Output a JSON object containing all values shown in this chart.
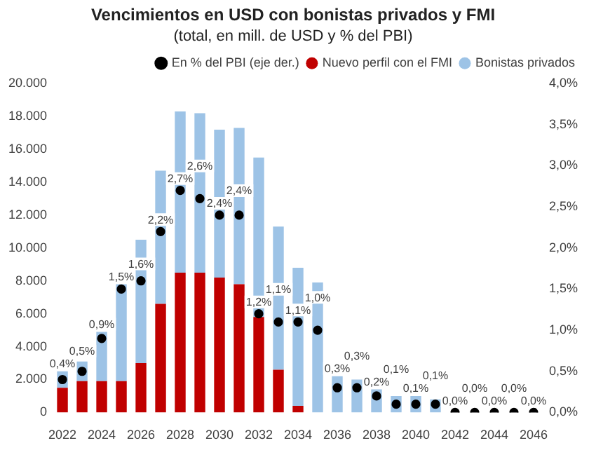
{
  "chart_data": {
    "type": "bar",
    "title": "Vencimientos en USD con bonistas privados y FMI",
    "subtitle": "(total, en mill. de USD y % del PBI)",
    "categories": [
      "2022",
      null,
      "2024",
      null,
      "2026",
      null,
      "2028",
      null,
      "2030",
      null,
      "2032",
      null,
      "2034",
      null,
      "2036",
      null,
      "2038",
      null,
      "2040",
      null,
      "2042",
      null,
      "2044",
      null,
      "2046"
    ],
    "stacked": true,
    "series": [
      {
        "name": "Nuevo perfil con el FMI",
        "color": "#c00000",
        "values": [
          1500,
          1900,
          1900,
          1900,
          3000,
          6600,
          8500,
          8500,
          8200,
          7800,
          5800,
          2600,
          400,
          0,
          0,
          0,
          0,
          0,
          0,
          0,
          0,
          0,
          0,
          0,
          0
        ]
      },
      {
        "name": "Bonistas privados",
        "color": "#9dc3e6",
        "values": [
          1000,
          1200,
          3000,
          5900,
          7500,
          8100,
          9800,
          9700,
          9000,
          9500,
          9700,
          8700,
          8400,
          7900,
          2200,
          2000,
          1400,
          1000,
          1000,
          800,
          0,
          0,
          0,
          0,
          0
        ]
      },
      {
        "name": "En % del PBI (eje der.)",
        "type": "scatter",
        "axis": "y2",
        "color": "#000000",
        "marker": "circle",
        "values": [
          0.4,
          0.5,
          0.9,
          1.5,
          1.6,
          2.2,
          2.7,
          2.6,
          2.4,
          2.4,
          1.2,
          1.1,
          1.1,
          1.0,
          0.3,
          0.3,
          0.2,
          0.1,
          0.1,
          0.1,
          0.0,
          0.0,
          0.0,
          0.0,
          0.0
        ],
        "value_labels": [
          "0,4%",
          "0,5%",
          "0,9%",
          "1,5%",
          "1,6%",
          "2,2%",
          "2,7%",
          "2,6%",
          "2,4%",
          "2,4%",
          "1,2%",
          "1,1%",
          "1,1%",
          "1,0%",
          "0,3%",
          "0,3%",
          "0,2%",
          "0,1%",
          "0,1%",
          "0,1%",
          "0,0%",
          "0,0%",
          "0,0%",
          "0,0%",
          "0,0%"
        ]
      }
    ],
    "ylim": [
      0,
      20000
    ],
    "yticks": [
      {
        "value": 0,
        "label": "0"
      },
      {
        "value": 2000,
        "label": "2.000"
      },
      {
        "value": 4000,
        "label": "4.000"
      },
      {
        "value": 6000,
        "label": "6.000"
      },
      {
        "value": 8000,
        "label": "8.000"
      },
      {
        "value": 10000,
        "label": "10.000"
      },
      {
        "value": 12000,
        "label": "12.000"
      },
      {
        "value": 14000,
        "label": "14.000"
      },
      {
        "value": 16000,
        "label": "16.000"
      },
      {
        "value": 18000,
        "label": "18.000"
      },
      {
        "value": 20000,
        "label": "20.000"
      }
    ],
    "y2lim": [
      0,
      4
    ],
    "y2ticks": [
      {
        "value": 0,
        "label": "0,0%"
      },
      {
        "value": 0.5,
        "label": "0,5%"
      },
      {
        "value": 1,
        "label": "1,0%"
      },
      {
        "value": 1.5,
        "label": "1,5%"
      },
      {
        "value": 2,
        "label": "2,0%"
      },
      {
        "value": 2.5,
        "label": "2,5%"
      },
      {
        "value": 3,
        "label": "3,0%"
      },
      {
        "value": 3.5,
        "label": "3,5%"
      },
      {
        "value": 4,
        "label": "4,0%"
      }
    ],
    "legend": "top right"
  }
}
